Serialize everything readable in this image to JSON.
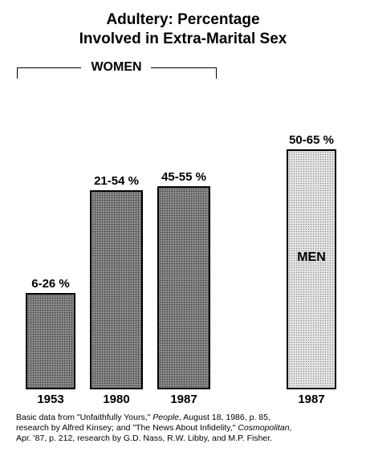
{
  "chart_data": {
    "type": "bar",
    "title_line1": "Adultery:  Percentage",
    "title_line2": "Involved in Extra-Marital Sex",
    "group_label": "WOMEN",
    "series_label_men": "MEN",
    "categories": [
      "1953",
      "1980",
      "1987",
      "1987"
    ],
    "groups": [
      "women",
      "women",
      "women",
      "men"
    ],
    "ranges_percent": [
      [
        6,
        26
      ],
      [
        21,
        54
      ],
      [
        45,
        55
      ],
      [
        50,
        65
      ]
    ],
    "value_labels": [
      "6-26 %",
      "21-54 %",
      "45-55 %",
      "50-65 %"
    ],
    "ylim": [
      0,
      70
    ],
    "grid": false
  },
  "source": {
    "line1_pre": "Basic data from \"Unfaithfully Yours,\" ",
    "line1_italic": "People",
    "line1_post": ", August 18, 1986, p. 85,",
    "line2_pre": "research by Alfred Kinsey; and \"The News About Infidelity,\" ",
    "line2_italic": "Cosmopolitan",
    "line2_post": ",",
    "line3": "Apr. '87, p. 212, research by G.D. Nass, R.W. Libby, and M.P. Fisher."
  }
}
